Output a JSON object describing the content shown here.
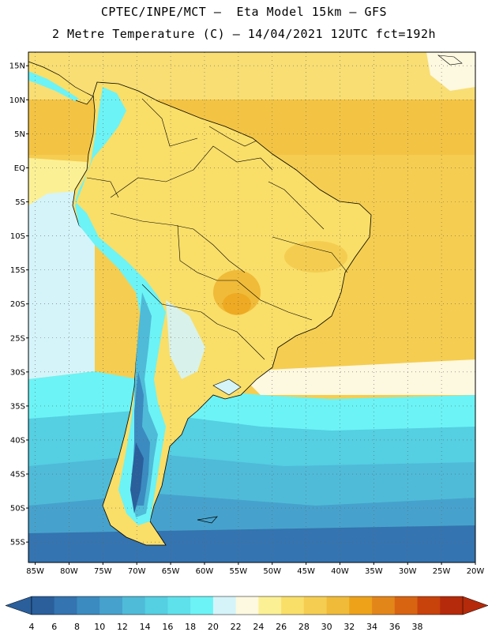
{
  "header": {
    "title_line1": "CPTEC/INPE/MCT –  Eta Model 15km – GFS",
    "title_line2": "2 Metre Temperature (C) – 14/04/2021 12UTC fct=192h"
  },
  "map": {
    "lat_labels": [
      "15N",
      "10N",
      "5N",
      "EQ",
      "5S",
      "10S",
      "15S",
      "20S",
      "25S",
      "30S",
      "35S",
      "40S",
      "45S",
      "50S",
      "55S"
    ],
    "lat_values": [
      15,
      10,
      5,
      0,
      -5,
      -10,
      -15,
      -20,
      -25,
      -30,
      -35,
      -40,
      -45,
      -50,
      -55
    ],
    "lon_labels": [
      "85W",
      "80W",
      "75W",
      "70W",
      "65W",
      "60W",
      "55W",
      "50W",
      "45W",
      "40W",
      "35W",
      "30W",
      "25W",
      "20W"
    ],
    "lon_values": [
      -85,
      -80,
      -75,
      -70,
      -65,
      -60,
      -55,
      -50,
      -45,
      -40,
      -35,
      -30,
      -25,
      -20
    ],
    "lon_range": [
      -86,
      -20
    ],
    "lat_range": [
      -58,
      17
    ]
  },
  "colorbar": {
    "labels": [
      "4",
      "6",
      "8",
      "10",
      "12",
      "14",
      "16",
      "18",
      "20",
      "22",
      "24",
      "26",
      "28",
      "30",
      "32",
      "34",
      "36",
      "38"
    ],
    "colors": [
      "#2a5f9c",
      "#3474b0",
      "#3b8bc0",
      "#46a2cc",
      "#4fbbd8",
      "#55cfe2",
      "#5fe1ec",
      "#6cf3f6",
      "#d4f4fa",
      "#fdf8e0",
      "#fcf095",
      "#f9de68",
      "#f5cd50",
      "#f0bb38",
      "#eda21a",
      "#e3861a",
      "#d86412",
      "#c8420c",
      "#b52a0a"
    ],
    "low_color": "#2a5f9c",
    "high_color": "#b52a0a"
  },
  "palette": {
    "ocean_warm": "#f5cd50",
    "land_warm": "#f9de68",
    "hot_spot": "#f0bb38",
    "cool": "#d4f4fa",
    "cold1": "#6cf3f6",
    "cold2": "#4fbbd8",
    "cold3": "#3b8bc0",
    "cold4": "#2a5f9c",
    "mild": "#fcf095",
    "coast": "#000000"
  }
}
